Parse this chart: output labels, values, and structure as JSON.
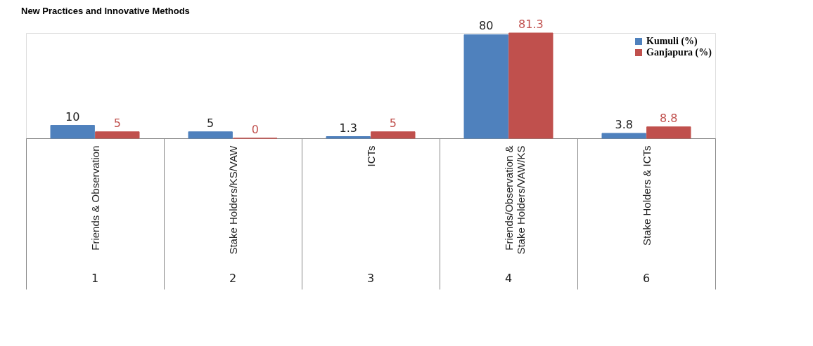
{
  "chart_data": {
    "type": "bar",
    "title": "New Practices  and Innovative Methods",
    "categories": [
      "Friends & Observation",
      "Stake Holders/KS/VAW",
      "ICTs",
      "Friends/Observation &\nStake Holders/VAW/KS",
      "Stake Holders & ICTs"
    ],
    "series": [
      {
        "name": "Kumuli    (%)",
        "color": "#4f81bd",
        "values": [
          10,
          5,
          1.3,
          80,
          3.8
        ]
      },
      {
        "name": "Ganjapura (%)",
        "color": "#c0504d",
        "values": [
          5,
          0,
          5,
          81.3,
          8.8
        ]
      }
    ],
    "data_labels": true,
    "legend": "top right",
    "grid": false,
    "annotations": [
      "1",
      "2",
      "3",
      "4",
      "6"
    ]
  }
}
